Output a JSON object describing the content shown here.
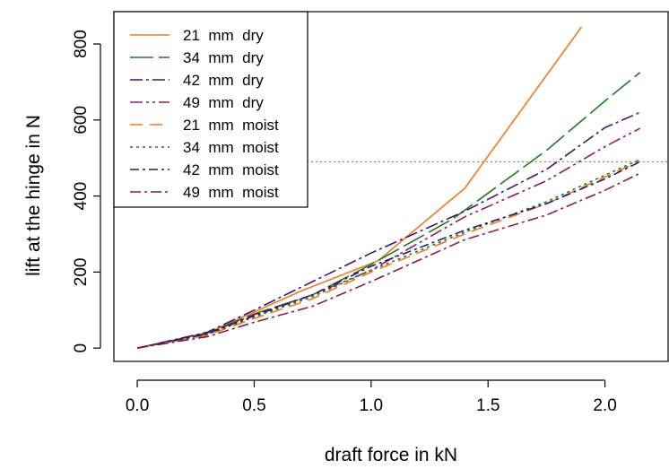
{
  "chart_data": {
    "type": "line",
    "title": "",
    "xlabel": "draft force in kN",
    "ylabel": "lift at the hinge in N",
    "xlim": [
      -0.1,
      2.27
    ],
    "ylim": [
      -35,
      885
    ],
    "xticks": [
      0.0,
      0.5,
      1.0,
      1.5,
      2.0
    ],
    "xtick_labels": [
      "0.0",
      "0.5",
      "1.0",
      "1.5",
      "2.0"
    ],
    "yticks": [
      0,
      200,
      400,
      600,
      800
    ],
    "ytick_labels": [
      "0",
      "200",
      "400",
      "600",
      "800"
    ],
    "grid": false,
    "legend_position": "top-left",
    "reference_line": {
      "y": 490,
      "style": "dotted",
      "color": "#888888"
    },
    "series": [
      {
        "name": "21  mm  dry",
        "color": "#f07a24",
        "dash": "",
        "x": [
          0,
          0.3,
          0.5,
          0.7,
          1.03,
          1.4,
          1.9
        ],
        "y": [
          0,
          40,
          95,
          150,
          230,
          420,
          845
        ]
      },
      {
        "name": "34  mm  dry",
        "color": "#1e7a1e",
        "dash": "26 6",
        "x": [
          0,
          0.3,
          0.5,
          0.75,
          1.0,
          1.35,
          1.75,
          2.0,
          2.15
        ],
        "y": [
          0,
          40,
          90,
          140,
          220,
          340,
          520,
          650,
          725
        ]
      },
      {
        "name": "42  mm  dry",
        "color": "#3a1a6b",
        "dash": "14 4 3 4",
        "x": [
          0,
          0.3,
          0.5,
          0.75,
          1.0,
          1.4,
          1.75,
          2.0,
          2.15
        ],
        "y": [
          0,
          42,
          100,
          175,
          250,
          360,
          470,
          580,
          620
        ]
      },
      {
        "name": "49  mm  dry",
        "color": "#8b1f5e",
        "dash": "14 4 3 4 3 4",
        "x": [
          0,
          0.3,
          0.5,
          0.75,
          1.0,
          1.4,
          1.75,
          2.0,
          2.15
        ],
        "y": [
          0,
          38,
          88,
          140,
          205,
          345,
          440,
          530,
          578
        ]
      },
      {
        "name": "21  mm  moist",
        "color": "#f07a24",
        "dash": "14 8",
        "x": [
          0,
          0.3,
          0.5,
          0.75,
          1.0,
          1.4,
          1.75,
          2.0,
          2.15
        ],
        "y": [
          0,
          34,
          78,
          130,
          200,
          300,
          380,
          450,
          492
        ]
      },
      {
        "name": "34  mm  moist",
        "color": "#1e7a1e",
        "dash": "3 4",
        "x": [
          0,
          0.3,
          0.5,
          0.75,
          1.0,
          1.4,
          1.75,
          2.0,
          2.15
        ],
        "y": [
          0,
          36,
          82,
          135,
          205,
          305,
          385,
          455,
          496
        ]
      },
      {
        "name": "42  mm  moist",
        "color": "#2a1a6b",
        "dash": "10 4 3 4",
        "x": [
          0,
          0.3,
          0.5,
          0.75,
          1.0,
          1.4,
          1.75,
          2.0,
          2.15
        ],
        "y": [
          0,
          38,
          85,
          140,
          215,
          310,
          380,
          445,
          490
        ]
      },
      {
        "name": "49  mm  moist",
        "color": "#8b1f3a",
        "dash": "12 4 3 4",
        "x": [
          0,
          0.3,
          0.5,
          0.75,
          1.0,
          1.4,
          1.75,
          2.0,
          2.15
        ],
        "y": [
          0,
          30,
          68,
          110,
          175,
          285,
          350,
          415,
          460
        ]
      }
    ]
  }
}
